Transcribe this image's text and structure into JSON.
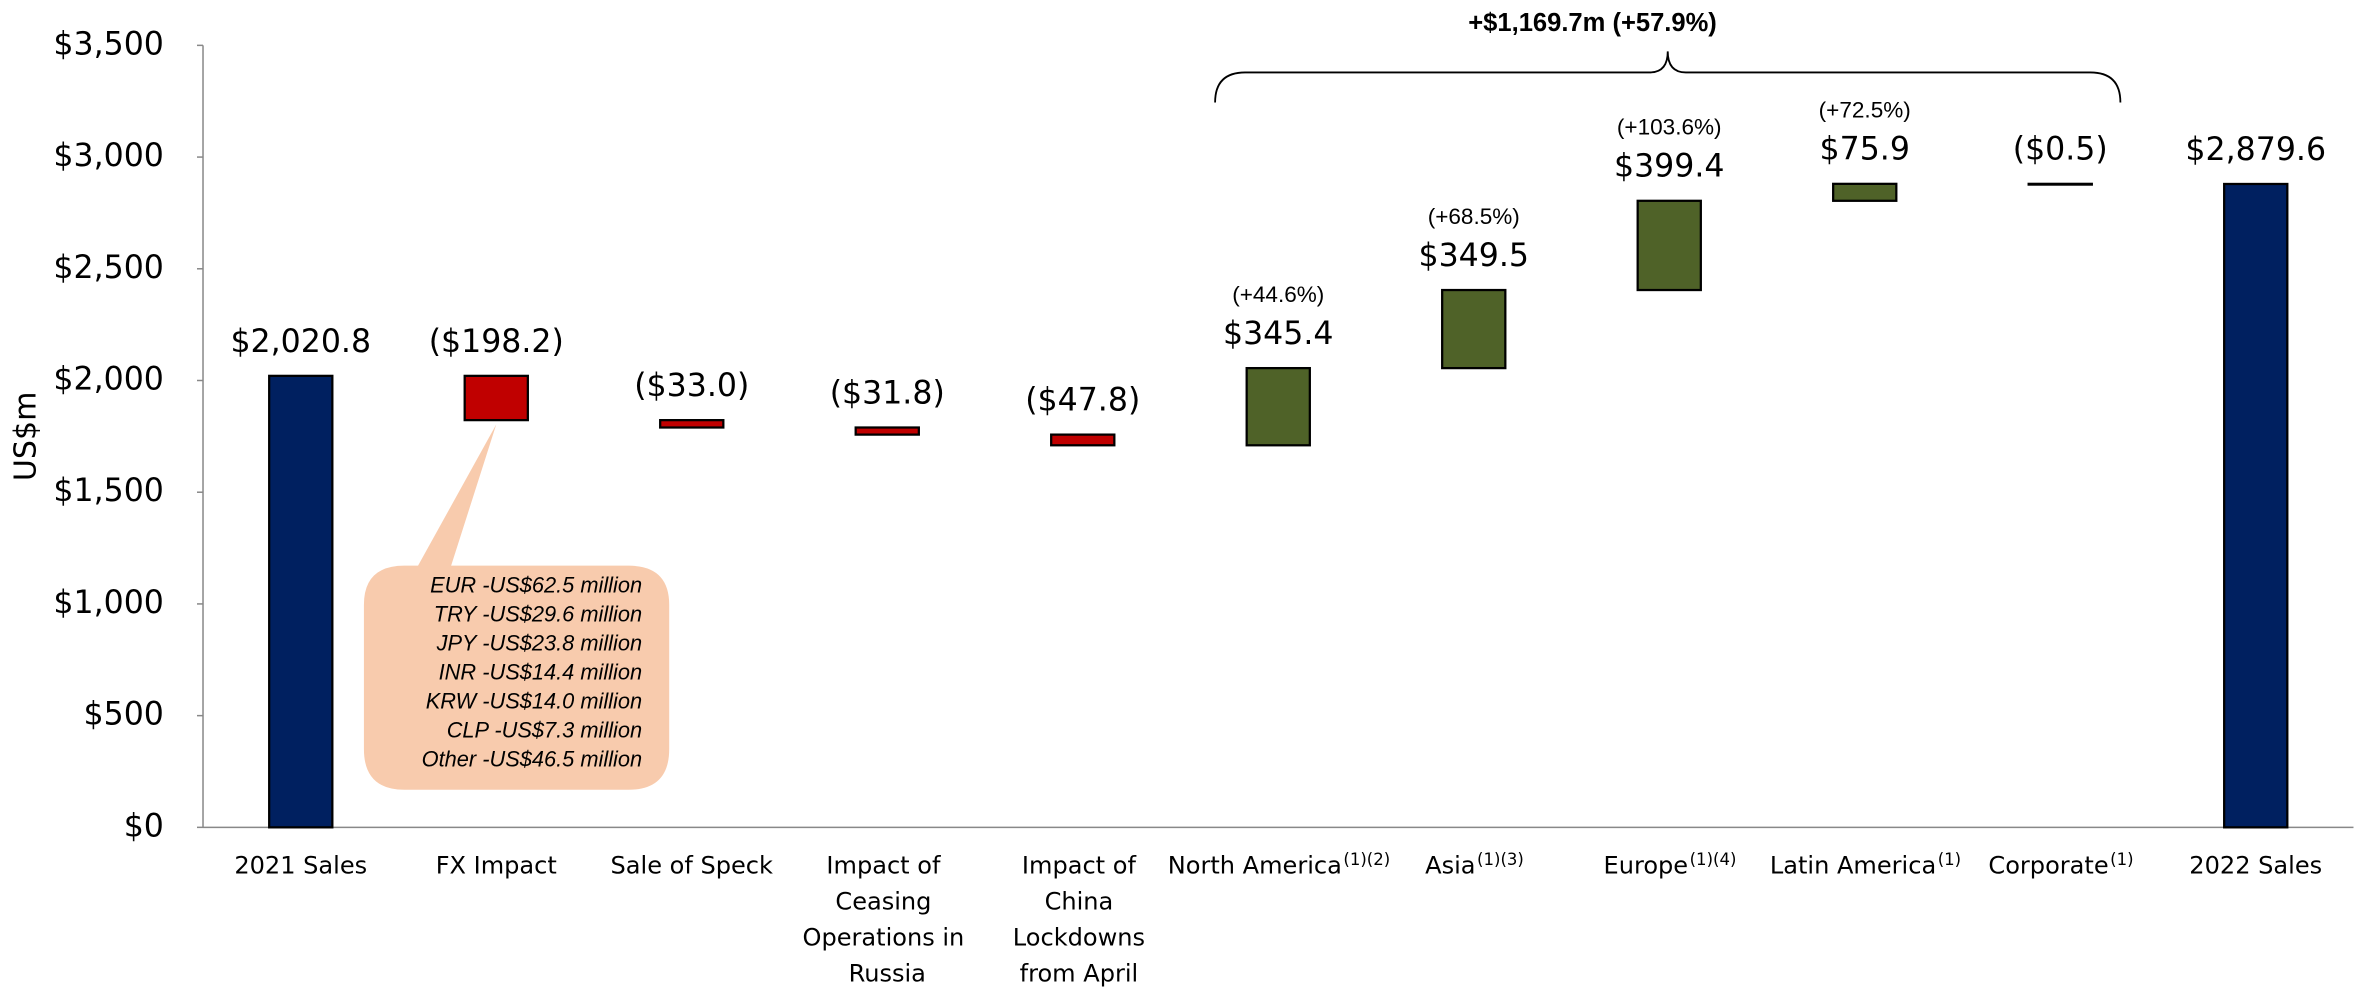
{
  "chart_data": {
    "type": "waterfall",
    "y_label": "US$m",
    "categories": [
      "2021 Sales",
      "FX Impact",
      "Sale of Speck",
      "Impact of Ceasing Operations in Russia",
      "Impact of China Lockdowns from April Onwards",
      "North America",
      "Asia",
      "Europe",
      "Latin America",
      "Corporate",
      "2022 Sales"
    ],
    "category_notes": [
      null,
      null,
      null,
      null,
      null,
      "(1)(2)",
      "(1)(3)",
      "(1)(4)",
      "(1)",
      "(1)",
      null
    ],
    "kinds": [
      "total",
      "delta",
      "delta",
      "delta",
      "delta",
      "delta",
      "delta",
      "delta",
      "delta",
      "delta",
      "total"
    ],
    "values": [
      2020.8,
      -198.2,
      -33.0,
      -31.8,
      -47.8,
      345.4,
      349.5,
      399.4,
      75.9,
      -0.5,
      2879.6
    ],
    "value_labels": [
      "$2,020.8",
      "($198.2)",
      "($33.0)",
      "($31.8)",
      "($47.8)",
      "$345.4",
      "$349.5",
      "$399.4",
      "$75.9",
      "($0.5)",
      "$2,879.6"
    ],
    "percent_labels": [
      null,
      null,
      null,
      null,
      null,
      "(+44.6%)",
      "(+68.5%)",
      "(+103.6%)",
      "(+72.5%)",
      null,
      null
    ],
    "colors": {
      "total": "#002060",
      "increase": "#4f6228",
      "decrease": "#c00000"
    },
    "ylim": [
      0,
      3500
    ],
    "yticks": [
      {
        "value": 0,
        "label": "$0"
      },
      {
        "value": 500,
        "label": "$500"
      },
      {
        "value": 1000,
        "label": "$1,000"
      },
      {
        "value": 1500,
        "label": "$1,500"
      },
      {
        "value": 2000,
        "label": "$2,000"
      },
      {
        "value": 2500,
        "label": "$2,500"
      },
      {
        "value": 3000,
        "label": "$3,000"
      },
      {
        "value": 3500,
        "label": "$3,500"
      }
    ],
    "bracket_annotation": {
      "text": "+$1,169.7m (+57.9%)",
      "from": 5,
      "to": 9
    },
    "callout": {
      "category": 1,
      "lines": [
        "EUR -US$62.5 million",
        "TRY -US$29.6 million",
        "JPY -US$23.8 million",
        "INR -US$14.4 million",
        "KRW -US$14.0 million",
        "CLP -US$7.3 million",
        "Other -US$46.5 million"
      ]
    }
  }
}
